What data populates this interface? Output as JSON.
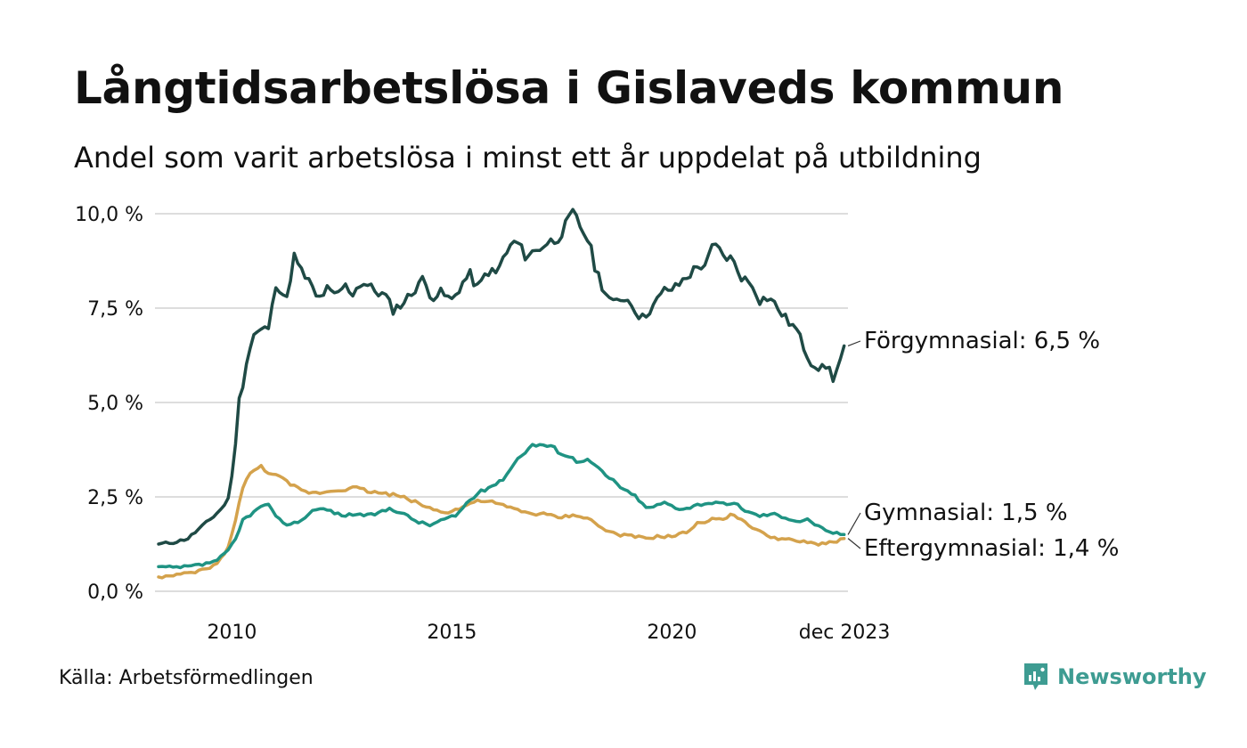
{
  "title": "Långtidsarbetslösa i Gislaveds kommun",
  "subtitle": "Andel som varit arbetslösa i minst ett år uppdelat på utbildning",
  "source": "Källa: Arbetsförmedlingen",
  "brand": {
    "name": "Newsworthy",
    "icon": "newsworthy-logo-icon",
    "color": "#3e9c92"
  },
  "chart_data": {
    "type": "line",
    "x_start": 2008.33,
    "x_step": 0.08333,
    "xlim": [
      2008.25,
      2024.0
    ],
    "ylim": [
      0,
      10
    ],
    "y_ticks": [
      {
        "value": 0,
        "label": "0,0 %"
      },
      {
        "value": 2.5,
        "label": "2,5 %"
      },
      {
        "value": 5,
        "label": "5,0 %"
      },
      {
        "value": 7.5,
        "label": "7,5 %"
      },
      {
        "value": 10,
        "label": "10,0 %"
      }
    ],
    "x_ticks": [
      {
        "value": 2010,
        "label": "2010"
      },
      {
        "value": 2015,
        "label": "2015"
      },
      {
        "value": 2020,
        "label": "2020"
      },
      {
        "value": 2023.92,
        "label": "dec 2023"
      }
    ],
    "series": [
      {
        "name": "Förgymnasial",
        "label": "Förgymnasial: 6,5 %",
        "color": "#1f4a45",
        "keypoints": [
          [
            2008.33,
            1.25
          ],
          [
            2008.7,
            1.3
          ],
          [
            2009.0,
            1.4
          ],
          [
            2009.3,
            1.7
          ],
          [
            2009.6,
            2.0
          ],
          [
            2009.85,
            2.3
          ],
          [
            2009.95,
            2.6
          ],
          [
            2010.05,
            3.5
          ],
          [
            2010.15,
            5.0
          ],
          [
            2010.25,
            5.5
          ],
          [
            2010.35,
            6.2
          ],
          [
            2010.5,
            6.8
          ],
          [
            2010.65,
            6.9
          ],
          [
            2010.85,
            7.0
          ],
          [
            2011.0,
            8.2
          ],
          [
            2011.15,
            7.9
          ],
          [
            2011.25,
            7.7
          ],
          [
            2011.4,
            8.9
          ],
          [
            2011.55,
            8.5
          ],
          [
            2011.75,
            8.2
          ],
          [
            2011.95,
            7.7
          ],
          [
            2012.15,
            8.0
          ],
          [
            2012.35,
            7.8
          ],
          [
            2012.55,
            8.1
          ],
          [
            2012.75,
            7.9
          ],
          [
            2012.95,
            8.2
          ],
          [
            2013.2,
            8.0
          ],
          [
            2013.5,
            7.8
          ],
          [
            2013.65,
            7.45
          ],
          [
            2013.85,
            7.6
          ],
          [
            2014.1,
            7.9
          ],
          [
            2014.3,
            8.3
          ],
          [
            2014.55,
            7.8
          ],
          [
            2014.75,
            7.9
          ],
          [
            2015.0,
            7.7
          ],
          [
            2015.2,
            8.1
          ],
          [
            2015.4,
            8.4
          ],
          [
            2015.6,
            8.0
          ],
          [
            2015.8,
            8.5
          ],
          [
            2016.0,
            8.4
          ],
          [
            2016.2,
            8.9
          ],
          [
            2016.45,
            9.3
          ],
          [
            2016.65,
            8.9
          ],
          [
            2016.9,
            9.0
          ],
          [
            2017.1,
            9.2
          ],
          [
            2017.35,
            9.3
          ],
          [
            2017.55,
            9.6
          ],
          [
            2017.75,
            10.0
          ],
          [
            2017.95,
            9.6
          ],
          [
            2018.1,
            9.3
          ],
          [
            2018.25,
            8.6
          ],
          [
            2018.45,
            8.0
          ],
          [
            2018.65,
            7.6
          ],
          [
            2018.9,
            7.8
          ],
          [
            2019.1,
            7.6
          ],
          [
            2019.3,
            7.2
          ],
          [
            2019.6,
            7.6
          ],
          [
            2019.85,
            8.0
          ],
          [
            2020.05,
            8.0
          ],
          [
            2020.3,
            8.3
          ],
          [
            2020.6,
            8.6
          ],
          [
            2020.8,
            8.7
          ],
          [
            2020.95,
            9.2
          ],
          [
            2021.15,
            8.9
          ],
          [
            2021.35,
            8.8
          ],
          [
            2021.6,
            8.3
          ],
          [
            2021.85,
            8.1
          ],
          [
            2022.0,
            7.7
          ],
          [
            2022.2,
            7.8
          ],
          [
            2022.4,
            7.5
          ],
          [
            2022.6,
            7.2
          ],
          [
            2022.85,
            6.9
          ],
          [
            2023.05,
            6.3
          ],
          [
            2023.2,
            6.0
          ],
          [
            2023.4,
            5.9
          ],
          [
            2023.55,
            6.0
          ],
          [
            2023.65,
            5.6
          ],
          [
            2023.8,
            6.0
          ],
          [
            2023.9,
            6.5
          ],
          [
            2023.92,
            6.5
          ]
        ]
      },
      {
        "name": "Gymnasial",
        "label": "Gymnasial: 1,5 %",
        "color": "#1f9383",
        "keypoints": [
          [
            2008.33,
            0.65
          ],
          [
            2008.7,
            0.62
          ],
          [
            2009.0,
            0.65
          ],
          [
            2009.4,
            0.72
          ],
          [
            2009.7,
            0.85
          ],
          [
            2009.9,
            1.05
          ],
          [
            2010.1,
            1.4
          ],
          [
            2010.25,
            1.9
          ],
          [
            2010.5,
            2.1
          ],
          [
            2010.8,
            2.35
          ],
          [
            2011.0,
            1.95
          ],
          [
            2011.3,
            1.75
          ],
          [
            2011.6,
            1.9
          ],
          [
            2011.9,
            2.2
          ],
          [
            2012.2,
            2.15
          ],
          [
            2012.5,
            2.0
          ],
          [
            2012.8,
            2.05
          ],
          [
            2013.1,
            2.0
          ],
          [
            2013.4,
            2.1
          ],
          [
            2013.6,
            2.2
          ],
          [
            2013.9,
            2.05
          ],
          [
            2014.2,
            1.85
          ],
          [
            2014.5,
            1.75
          ],
          [
            2014.8,
            1.9
          ],
          [
            2015.1,
            2.0
          ],
          [
            2015.3,
            2.3
          ],
          [
            2015.6,
            2.6
          ],
          [
            2015.9,
            2.8
          ],
          [
            2016.1,
            2.9
          ],
          [
            2016.3,
            3.2
          ],
          [
            2016.55,
            3.6
          ],
          [
            2016.8,
            3.85
          ],
          [
            2017.0,
            3.9
          ],
          [
            2017.3,
            3.8
          ],
          [
            2017.6,
            3.6
          ],
          [
            2017.85,
            3.45
          ],
          [
            2018.0,
            3.5
          ],
          [
            2018.2,
            3.4
          ],
          [
            2018.45,
            3.1
          ],
          [
            2018.7,
            2.9
          ],
          [
            2018.95,
            2.65
          ],
          [
            2019.2,
            2.5
          ],
          [
            2019.4,
            2.2
          ],
          [
            2019.6,
            2.25
          ],
          [
            2019.85,
            2.35
          ],
          [
            2020.1,
            2.2
          ],
          [
            2020.35,
            2.2
          ],
          [
            2020.6,
            2.3
          ],
          [
            2020.9,
            2.35
          ],
          [
            2021.2,
            2.3
          ],
          [
            2021.5,
            2.3
          ],
          [
            2021.7,
            2.1
          ],
          [
            2022.0,
            2.0
          ],
          [
            2022.3,
            2.05
          ],
          [
            2022.6,
            1.95
          ],
          [
            2022.85,
            1.85
          ],
          [
            2023.1,
            1.9
          ],
          [
            2023.35,
            1.7
          ],
          [
            2023.55,
            1.55
          ],
          [
            2023.75,
            1.55
          ],
          [
            2023.92,
            1.5
          ]
        ]
      },
      {
        "name": "Eftergymnasial",
        "label": "Eftergymnasial: 1,4 %",
        "color": "#d4a24c",
        "keypoints": [
          [
            2008.33,
            0.38
          ],
          [
            2008.6,
            0.4
          ],
          [
            2008.9,
            0.45
          ],
          [
            2009.2,
            0.52
          ],
          [
            2009.5,
            0.62
          ],
          [
            2009.7,
            0.78
          ],
          [
            2009.85,
            1.0
          ],
          [
            2010.0,
            1.5
          ],
          [
            2010.1,
            2.0
          ],
          [
            2010.2,
            2.6
          ],
          [
            2010.35,
            3.0
          ],
          [
            2010.5,
            3.2
          ],
          [
            2010.65,
            3.3
          ],
          [
            2010.85,
            3.15
          ],
          [
            2011.1,
            3.0
          ],
          [
            2011.3,
            2.85
          ],
          [
            2011.6,
            2.65
          ],
          [
            2011.9,
            2.6
          ],
          [
            2012.2,
            2.65
          ],
          [
            2012.5,
            2.7
          ],
          [
            2012.8,
            2.75
          ],
          [
            2013.1,
            2.65
          ],
          [
            2013.4,
            2.6
          ],
          [
            2013.7,
            2.55
          ],
          [
            2014.0,
            2.45
          ],
          [
            2014.3,
            2.3
          ],
          [
            2014.6,
            2.15
          ],
          [
            2014.9,
            2.1
          ],
          [
            2015.2,
            2.2
          ],
          [
            2015.45,
            2.35
          ],
          [
            2015.7,
            2.4
          ],
          [
            2015.95,
            2.35
          ],
          [
            2016.2,
            2.25
          ],
          [
            2016.5,
            2.15
          ],
          [
            2016.8,
            2.05
          ],
          [
            2017.1,
            2.05
          ],
          [
            2017.4,
            1.95
          ],
          [
            2017.7,
            2.0
          ],
          [
            2017.95,
            2.0
          ],
          [
            2018.2,
            1.85
          ],
          [
            2018.5,
            1.6
          ],
          [
            2018.8,
            1.5
          ],
          [
            2019.1,
            1.45
          ],
          [
            2019.4,
            1.4
          ],
          [
            2019.7,
            1.45
          ],
          [
            2020.0,
            1.45
          ],
          [
            2020.3,
            1.55
          ],
          [
            2020.6,
            1.8
          ],
          [
            2020.9,
            1.9
          ],
          [
            2021.2,
            1.95
          ],
          [
            2021.4,
            2.05
          ],
          [
            2021.6,
            1.85
          ],
          [
            2021.9,
            1.65
          ],
          [
            2022.1,
            1.5
          ],
          [
            2022.4,
            1.4
          ],
          [
            2022.7,
            1.35
          ],
          [
            2023.0,
            1.3
          ],
          [
            2023.3,
            1.25
          ],
          [
            2023.6,
            1.3
          ],
          [
            2023.8,
            1.35
          ],
          [
            2023.92,
            1.4
          ]
        ]
      }
    ]
  }
}
